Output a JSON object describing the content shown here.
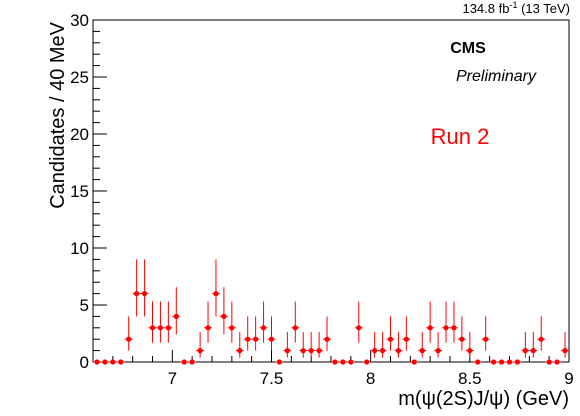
{
  "header": {
    "lumi_value": "134.8 fb",
    "lumi_exponent": "-1",
    "lumi_energy": " (13 TeV)"
  },
  "labels": {
    "experiment": "CMS",
    "status": "Preliminary",
    "run": "Run 2"
  },
  "colors": {
    "marker": "#ff0000",
    "axis": "#000000",
    "run_label": "#ff0000"
  },
  "chart_data": {
    "type": "scatter",
    "subtype": "histogram-with-poisson-errors",
    "xlabel": "m(ψ(2S)J/ψ) (GeV)",
    "ylabel": "Candidates / 40 MeV",
    "xlim": [
      6.6,
      9.0
    ],
    "ylim": [
      0,
      30
    ],
    "bin_width": 0.04,
    "x_ticks": [
      7,
      7.5,
      8,
      8.5,
      9
    ],
    "x_tick_labels": [
      "7",
      "7.5",
      "8",
      "8.5",
      "9"
    ],
    "y_ticks": [
      0,
      5,
      10,
      15,
      20,
      25,
      30
    ],
    "y_tick_labels": [
      "0",
      "5",
      "10",
      "15",
      "20",
      "25",
      "30"
    ],
    "grid": false,
    "legend": "none",
    "x": [
      6.62,
      6.66,
      6.7,
      6.74,
      6.78,
      6.82,
      6.86,
      6.9,
      6.94,
      6.98,
      7.02,
      7.06,
      7.1,
      7.14,
      7.18,
      7.22,
      7.26,
      7.3,
      7.34,
      7.38,
      7.42,
      7.46,
      7.5,
      7.54,
      7.58,
      7.62,
      7.66,
      7.7,
      7.74,
      7.78,
      7.82,
      7.86,
      7.9,
      7.94,
      7.98,
      8.02,
      8.06,
      8.1,
      8.14,
      8.18,
      8.22,
      8.26,
      8.3,
      8.34,
      8.38,
      8.42,
      8.46,
      8.5,
      8.54,
      8.58,
      8.62,
      8.66,
      8.7,
      8.74,
      8.78,
      8.82,
      8.86,
      8.9,
      8.94,
      8.98
    ],
    "y": [
      0,
      0,
      0,
      0,
      2,
      6,
      6,
      3,
      3,
      3,
      4,
      0,
      0,
      1,
      3,
      6,
      4,
      3,
      1,
      2,
      2,
      3,
      2,
      0,
      1,
      3,
      1,
      1,
      1,
      2,
      0,
      0,
      0,
      3,
      0,
      1,
      1,
      2,
      1,
      2,
      0,
      1,
      3,
      1,
      3,
      3,
      2,
      1,
      0,
      2,
      0,
      0,
      0,
      0,
      1,
      1,
      2,
      0,
      0,
      1
    ]
  }
}
